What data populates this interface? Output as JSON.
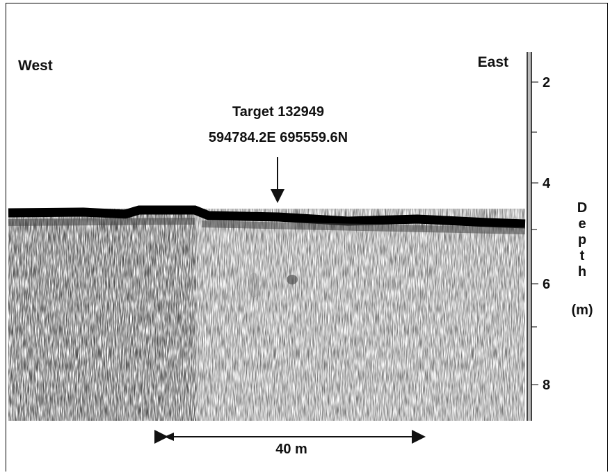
{
  "labels": {
    "west": "West",
    "east": "East",
    "target": "Target 132949",
    "coords": "594784.2E 695559.6N",
    "scale": "40 m"
  },
  "depth_axis": {
    "title": "Depth",
    "unit": "(m)",
    "ticks": [
      2,
      4,
      6,
      8
    ]
  }
}
